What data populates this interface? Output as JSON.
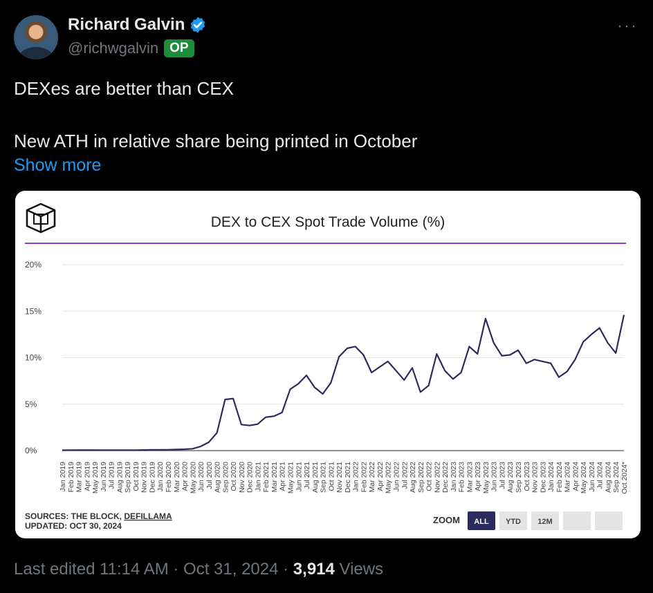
{
  "author": {
    "name": "Richard Galvin",
    "handle": "@richwgalvin",
    "badge": "OP"
  },
  "tweet": {
    "line1": "DEXes are better than CEX",
    "line2": "New ATH in relative share being printed in October",
    "show_more": "Show more"
  },
  "more_icon": "···",
  "chart_card": {
    "sources_prefix": "SOURCES: THE BLOCK, ",
    "sources_link": "DEFILLAMA",
    "updated": "UPDATED: OCT 30, 2024",
    "zoom_label": "ZOOM",
    "zoom_buttons": [
      "ALL",
      "YTD",
      "12M",
      "",
      ""
    ],
    "zoom_active": 0,
    "accent_color": "#8b3fd6",
    "line_color": "#2d2a5c"
  },
  "chart_data": {
    "type": "line",
    "title": "DEX to CEX Spot Trade Volume (%)",
    "xlabel": "",
    "ylabel": "",
    "ylim": [
      0,
      20
    ],
    "yticks": [
      "0%",
      "5%",
      "10%",
      "15%",
      "20%"
    ],
    "grid": true,
    "categories": [
      "Jan 2019",
      "Feb 2019",
      "Mar 2019",
      "Apr 2019",
      "May 2019",
      "Jun 2019",
      "Jul 2019",
      "Aug 2019",
      "Sep 2019",
      "Oct 2019",
      "Nov 2019",
      "Dec 2019",
      "Jan 2020",
      "Feb 2020",
      "Mar 2020",
      "Apr 2020",
      "May 2020",
      "Jun 2020",
      "Jul 2020",
      "Aug 2020",
      "Sep 2020",
      "Oct 2020",
      "Nov 2020",
      "Dec 2020",
      "Jan 2021",
      "Feb 2021",
      "Mar 2021",
      "Apr 2021",
      "May 2021",
      "Jun 2021",
      "Jul 2021",
      "Aug 2021",
      "Sep 2021",
      "Oct 2021",
      "Nov 2021",
      "Dec 2021",
      "Jan 2022",
      "Feb 2022",
      "Mar 2022",
      "Apr 2022",
      "May 2022",
      "Jun 2022",
      "Jul 2022",
      "Aug 2022",
      "Sep 2022",
      "Oct 2022",
      "Nov 2022",
      "Dec 2022",
      "Jan 2023",
      "Feb 2023",
      "Mar 2023",
      "Apr 2023",
      "May 2023",
      "Jun 2023",
      "Jul 2023",
      "Aug 2023",
      "Sep 2023",
      "Oct 2023",
      "Nov 2023",
      "Dec 2023",
      "Jan 2024",
      "Feb 2024",
      "Mar 2024",
      "Apr 2024",
      "May 2024",
      "Jun 2024",
      "Jul 2024",
      "Aug 2024",
      "Sep 2024",
      "Oct 2024*"
    ],
    "series": [
      {
        "values": [
          0.05,
          0.05,
          0.06,
          0.06,
          0.06,
          0.05,
          0.05,
          0.05,
          0.05,
          0.05,
          0.07,
          0.08,
          0.08,
          0.1,
          0.12,
          0.15,
          0.2,
          0.45,
          0.9,
          1.9,
          5.5,
          5.6,
          2.8,
          2.7,
          2.85,
          3.6,
          3.7,
          4.1,
          6.6,
          7.2,
          8.1,
          6.8,
          6.1,
          7.3,
          10.1,
          11.0,
          11.2,
          10.3,
          8.4,
          9.0,
          9.6,
          8.6,
          7.6,
          8.9,
          6.3,
          7.0,
          10.4,
          8.6,
          7.7,
          8.4,
          11.2,
          10.4,
          14.2,
          11.6,
          10.2,
          10.3,
          10.8,
          9.4,
          9.8,
          9.6,
          9.4,
          7.9,
          8.5,
          9.8,
          11.7,
          12.5,
          13.2,
          11.6,
          10.5,
          14.6
        ]
      }
    ]
  },
  "footer": {
    "edited": "Last edited 11:14 AM · Oct 31, 2024 · ",
    "views_count": "3,914",
    "views_label": " Views"
  }
}
